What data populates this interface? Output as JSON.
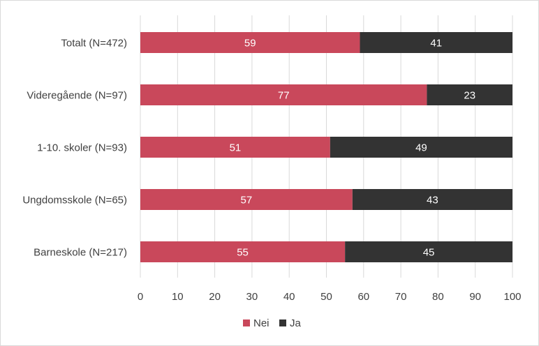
{
  "chart_data": {
    "type": "bar",
    "orientation": "horizontal",
    "stacked": true,
    "title": "",
    "xlabel": "",
    "ylabel": "",
    "categories": [
      "Totalt (N=472)",
      "Videregående (N=97)",
      "1-10. skoler (N=93)",
      "Ungdomsskole (N=65)",
      "Barneskole (N=217)"
    ],
    "series": [
      {
        "name": "Nei",
        "color": "#c9485b",
        "label_color": "#ffffff",
        "values": [
          59,
          77,
          51,
          57,
          55
        ]
      },
      {
        "name": "Ja",
        "color": "#333333",
        "label_color": "#ffffff",
        "values": [
          41,
          23,
          49,
          43,
          45
        ]
      }
    ],
    "xlim": [
      0,
      100
    ],
    "xticks": [
      0,
      10,
      20,
      30,
      40,
      50,
      60,
      70,
      80,
      90,
      100
    ],
    "grid": true,
    "legend_position": "bottom"
  }
}
